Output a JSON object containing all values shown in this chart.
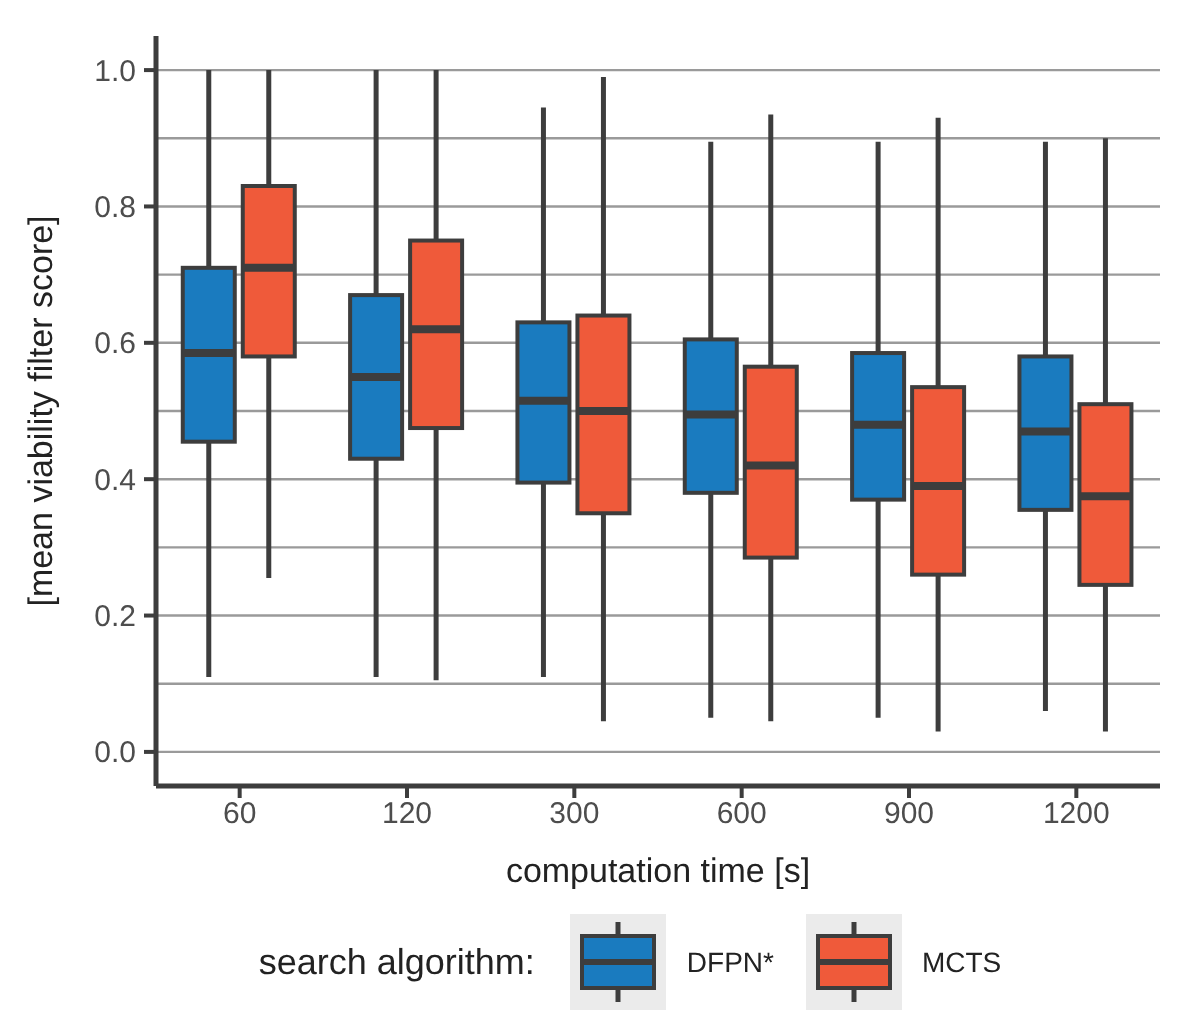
{
  "chart_data": {
    "type": "box",
    "xlabel": "computation time [s]",
    "ylabel": "[mean viability filter score]",
    "legend_title": "search algorithm:",
    "categories": [
      "60",
      "120",
      "300",
      "600",
      "900",
      "1200"
    ],
    "ylim": [
      -0.05,
      1.05
    ],
    "yticks": [
      {
        "value": 0,
        "label": "0.0"
      },
      {
        "value": 0.1,
        "label": null
      },
      {
        "value": 0.2,
        "label": "0.2"
      },
      {
        "value": 0.3,
        "label": null
      },
      {
        "value": 0.4,
        "label": "0.4"
      },
      {
        "value": 0.5,
        "label": null
      },
      {
        "value": 0.6,
        "label": "0.6"
      },
      {
        "value": 0.7,
        "label": null
      },
      {
        "value": 0.8,
        "label": "0.8"
      },
      {
        "value": 0.9,
        "label": null
      },
      {
        "value": 1,
        "label": "1.0"
      }
    ],
    "grid": "y",
    "legend": "bottom",
    "series": [
      {
        "name": "DFPN*",
        "color": "#1a7bbf",
        "boxes": [
          {
            "low": 0.11,
            "q1": 0.455,
            "median": 0.585,
            "q3": 0.71,
            "high": 1.0
          },
          {
            "low": 0.11,
            "q1": 0.43,
            "median": 0.55,
            "q3": 0.67,
            "high": 1.0
          },
          {
            "low": 0.11,
            "q1": 0.395,
            "median": 0.515,
            "q3": 0.63,
            "high": 0.945
          },
          {
            "low": 0.05,
            "q1": 0.38,
            "median": 0.495,
            "q3": 0.605,
            "high": 0.895
          },
          {
            "low": 0.05,
            "q1": 0.37,
            "median": 0.48,
            "q3": 0.585,
            "high": 0.895
          },
          {
            "low": 0.06,
            "q1": 0.355,
            "median": 0.47,
            "q3": 0.58,
            "high": 0.895
          }
        ]
      },
      {
        "name": "MCTS",
        "color": "#ef5a3a",
        "boxes": [
          {
            "low": 0.255,
            "q1": 0.58,
            "median": 0.71,
            "q3": 0.83,
            "high": 1.0
          },
          {
            "low": 0.105,
            "q1": 0.475,
            "median": 0.62,
            "q3": 0.75,
            "high": 1.0
          },
          {
            "low": 0.045,
            "q1": 0.35,
            "median": 0.5,
            "q3": 0.64,
            "high": 0.99
          },
          {
            "low": 0.045,
            "q1": 0.285,
            "median": 0.42,
            "q3": 0.565,
            "high": 0.935
          },
          {
            "low": 0.03,
            "q1": 0.26,
            "median": 0.39,
            "q3": 0.535,
            "high": 0.93
          },
          {
            "low": 0.03,
            "q1": 0.245,
            "median": 0.375,
            "q3": 0.51,
            "high": 0.9
          }
        ]
      }
    ]
  }
}
